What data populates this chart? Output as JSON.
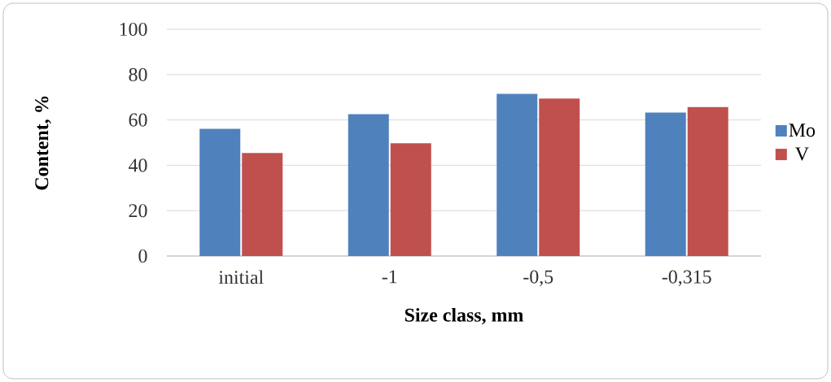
{
  "chart_data": {
    "type": "bar",
    "xlabel": "Size class, mm",
    "ylabel": "Content, %",
    "categories": [
      "initial",
      "-1",
      "-0,5",
      "-0,315"
    ],
    "series": [
      {
        "name": "Mo",
        "color": "#4f81bd",
        "values": [
          56.1,
          62.5,
          71.5,
          63.3
        ]
      },
      {
        "name": "V",
        "color": "#c0504d",
        "values": [
          45.4,
          49.7,
          69.4,
          65.7
        ]
      }
    ],
    "ylim": [
      0,
      100
    ],
    "yticks": [
      0,
      20,
      40,
      60,
      80,
      100
    ],
    "grid": "y",
    "legend": "right"
  }
}
